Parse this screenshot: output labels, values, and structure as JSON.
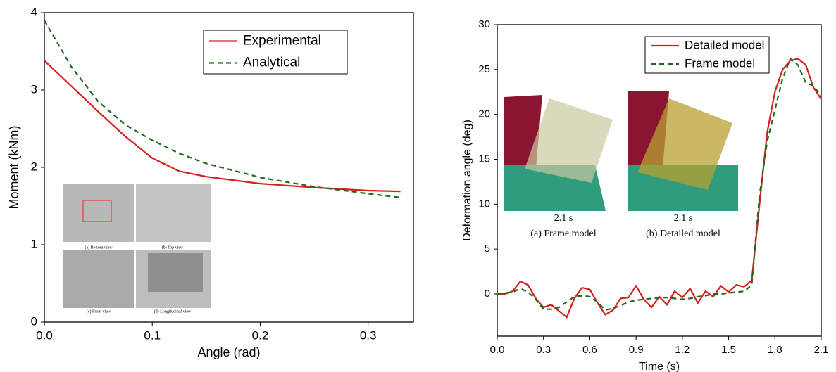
{
  "chart_data": [
    {
      "type": "line",
      "xlabel": "Angle (rad)",
      "ylabel": "Moment (kNm)",
      "x": [
        0,
        0.025,
        0.05,
        0.075,
        0.1,
        0.125,
        0.15,
        0.2,
        0.25,
        0.3,
        0.33
      ],
      "series": [
        {
          "name": "Experimental",
          "color": "#d62020",
          "line_style": "solid",
          "values": [
            3.38,
            3.05,
            2.72,
            2.4,
            2.12,
            1.95,
            1.88,
            1.79,
            1.74,
            1.7,
            1.69
          ]
        },
        {
          "name": "Analytical",
          "color": "#1e6b1e",
          "line_style": "dashed",
          "values": [
            3.9,
            3.3,
            2.85,
            2.55,
            2.35,
            2.18,
            2.05,
            1.87,
            1.75,
            1.66,
            1.61
          ]
        }
      ],
      "xlim": [
        0,
        0.342
      ],
      "ylim": [
        0,
        4
      ],
      "xticks": [
        {
          "value": 0,
          "label": "0.0"
        },
        0.1,
        0.2,
        0.3
      ],
      "yticks": [
        0,
        1,
        2,
        3,
        4
      ],
      "legend": "upper right",
      "annotations": [
        "(a) Bottom view",
        "(b) Top view",
        "(c) Front view",
        "(d) Longitudinal view"
      ]
    },
    {
      "type": "line",
      "xlabel": "Time (s)",
      "ylabel": "Deformation angle (deg)",
      "x": [
        0,
        0.05,
        0.1,
        0.15,
        0.2,
        0.25,
        0.3,
        0.35,
        0.4,
        0.45,
        0.5,
        0.55,
        0.6,
        0.65,
        0.7,
        0.75,
        0.8,
        0.85,
        0.9,
        0.95,
        1.0,
        1.05,
        1.1,
        1.15,
        1.2,
        1.25,
        1.3,
        1.35,
        1.4,
        1.45,
        1.5,
        1.55,
        1.6,
        1.65,
        1.7,
        1.75,
        1.8,
        1.85,
        1.9,
        1.95,
        2.0,
        2.05,
        2.1
      ],
      "series": [
        {
          "name": "Detailed model",
          "color": "#d62020",
          "line_style": "solid",
          "values": [
            0,
            0,
            0.3,
            1.4,
            1.0,
            -0.5,
            -1.5,
            -1.2,
            -1.9,
            -2.6,
            -0.5,
            0.7,
            0.5,
            -1.0,
            -2.3,
            -1.8,
            -0.5,
            -0.4,
            0.9,
            -0.6,
            -1.5,
            -0.3,
            -1.2,
            0.3,
            -0.4,
            0.6,
            -1.0,
            0.3,
            -0.3,
            0.9,
            0.2,
            1.0,
            0.8,
            1.5,
            10,
            18,
            22.5,
            25,
            26,
            26.2,
            25.5,
            23,
            21.7
          ]
        },
        {
          "name": "Frame model",
          "color": "#1e6b1e",
          "line_style": "dashed",
          "values": [
            0,
            0.1,
            0.2,
            0.6,
            0.2,
            -0.6,
            -1.7,
            -1.7,
            -1.5,
            -0.9,
            -0.3,
            -0.2,
            -0.3,
            -0.9,
            -1.8,
            -1.6,
            -1.3,
            -0.9,
            -0.7,
            -0.6,
            -0.5,
            -0.4,
            -0.4,
            -0.5,
            -0.6,
            -0.5,
            -0.3,
            -0.2,
            0,
            0,
            0.1,
            0.2,
            0.3,
            1,
            11,
            17,
            20.5,
            24,
            26.2,
            25.5,
            23.5,
            23.2,
            22
          ]
        }
      ],
      "xlim": [
        0,
        2.1
      ],
      "ylim": [
        -4.7,
        30
      ],
      "xticks": [
        {
          "value": 0,
          "label": "0.0"
        },
        0.3,
        0.6,
        0.9,
        1.2,
        1.5,
        1.8,
        2.1
      ],
      "yticks": [
        0,
        5,
        10,
        15,
        20,
        25,
        30
      ],
      "legend": "upper right",
      "annotations": [
        "2.1 s",
        "(a) Frame model",
        "2.1 s",
        "(b) Detailed model"
      ]
    }
  ]
}
